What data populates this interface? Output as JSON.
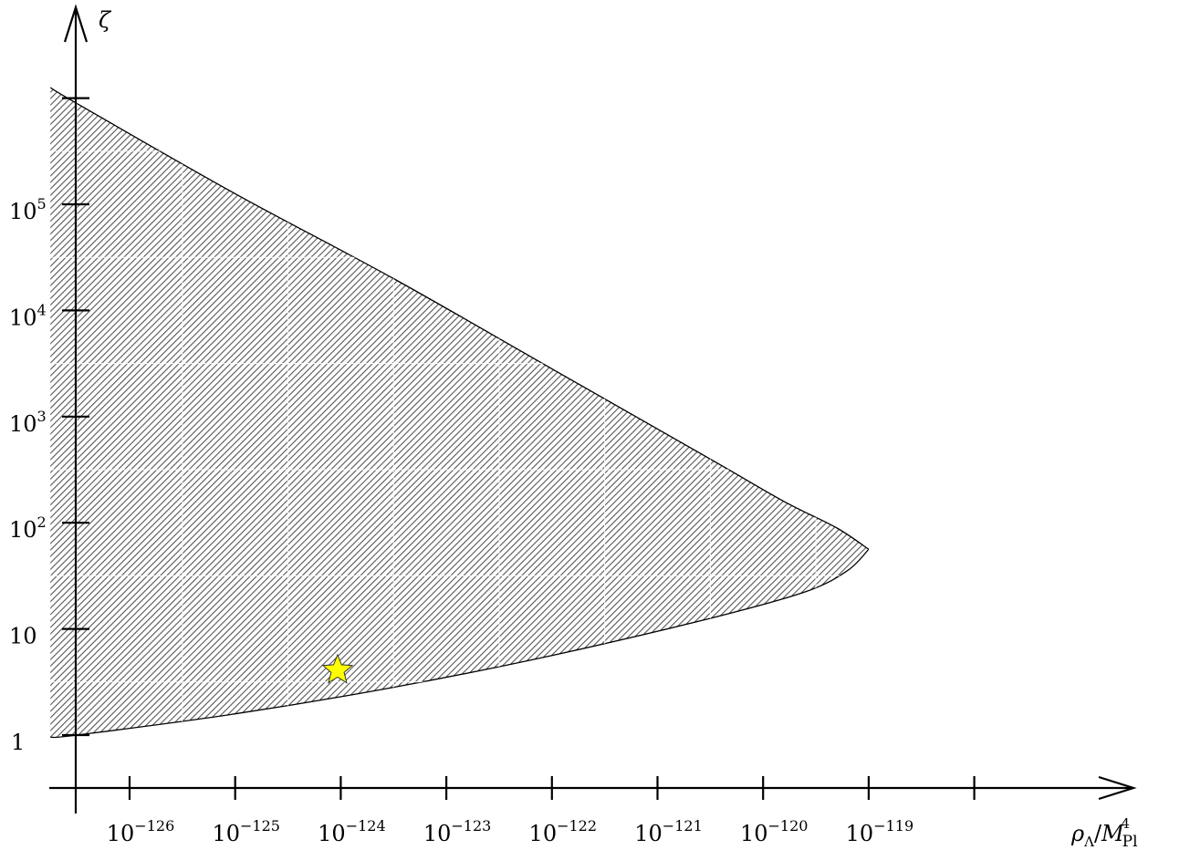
{
  "chart_data": {
    "type": "area",
    "title": "",
    "xlabel": "ρ_Λ/M_Pl^4",
    "ylabel": "ζ",
    "x_scale": "log",
    "y_scale": "log",
    "x_ticks": [
      {
        "base": "10",
        "exp": "−126",
        "value": -126
      },
      {
        "base": "10",
        "exp": "−125",
        "value": -125
      },
      {
        "base": "10",
        "exp": "−124",
        "value": -124
      },
      {
        "base": "10",
        "exp": "−123",
        "value": -123
      },
      {
        "base": "10",
        "exp": "−122",
        "value": -122
      },
      {
        "base": "10",
        "exp": "−121",
        "value": -121
      },
      {
        "base": "10",
        "exp": "−120",
        "value": -120
      },
      {
        "base": "10",
        "exp": "−119",
        "value": -119
      }
    ],
    "y_ticks": [
      {
        "base": "1",
        "exp": "",
        "value": 0
      },
      {
        "base": "10",
        "exp": "",
        "value": 1
      },
      {
        "base": "10",
        "exp": "2",
        "value": 2
      },
      {
        "base": "10",
        "exp": "3",
        "value": 3
      },
      {
        "base": "10",
        "exp": "4",
        "value": 4
      },
      {
        "base": "10",
        "exp": "5",
        "value": 5
      }
    ],
    "xlim_log10": [
      -126.5,
      -117.5
    ],
    "ylim_log10": [
      -0.6,
      6.6
    ],
    "region": {
      "description_fill": "hatched",
      "upper_boundary": [
        {
          "x": -126.75,
          "y": 6.1
        },
        {
          "x": -126.5,
          "y": 5.95
        },
        {
          "x": -125.0,
          "y": 5.1
        },
        {
          "x": -123.5,
          "y": 4.3
        },
        {
          "x": -122.0,
          "y": 3.45
        },
        {
          "x": -120.5,
          "y": 2.6
        },
        {
          "x": -119.8,
          "y": 2.2
        },
        {
          "x": -119.3,
          "y": 1.95
        },
        {
          "x": -119.0,
          "y": 1.75
        }
      ],
      "lower_boundary": [
        {
          "x": -119.0,
          "y": 1.75
        },
        {
          "x": -119.2,
          "y": 1.55
        },
        {
          "x": -119.6,
          "y": 1.35
        },
        {
          "x": -120.5,
          "y": 1.1
        },
        {
          "x": -122.0,
          "y": 0.75
        },
        {
          "x": -123.5,
          "y": 0.45
        },
        {
          "x": -125.0,
          "y": 0.2
        },
        {
          "x": -126.5,
          "y": 0.0
        },
        {
          "x": -126.75,
          "y": -0.02
        }
      ]
    },
    "marker": {
      "shape": "star",
      "color": "#ffff00",
      "x": -124.03,
      "y": 0.61
    }
  },
  "axis_labels": {
    "x_main": "ρ",
    "x_sub": "Λ",
    "x_slash": "/",
    "x_M": "M",
    "x_M_sub": "Pl",
    "x_M_sup": "4",
    "y": "ζ"
  }
}
